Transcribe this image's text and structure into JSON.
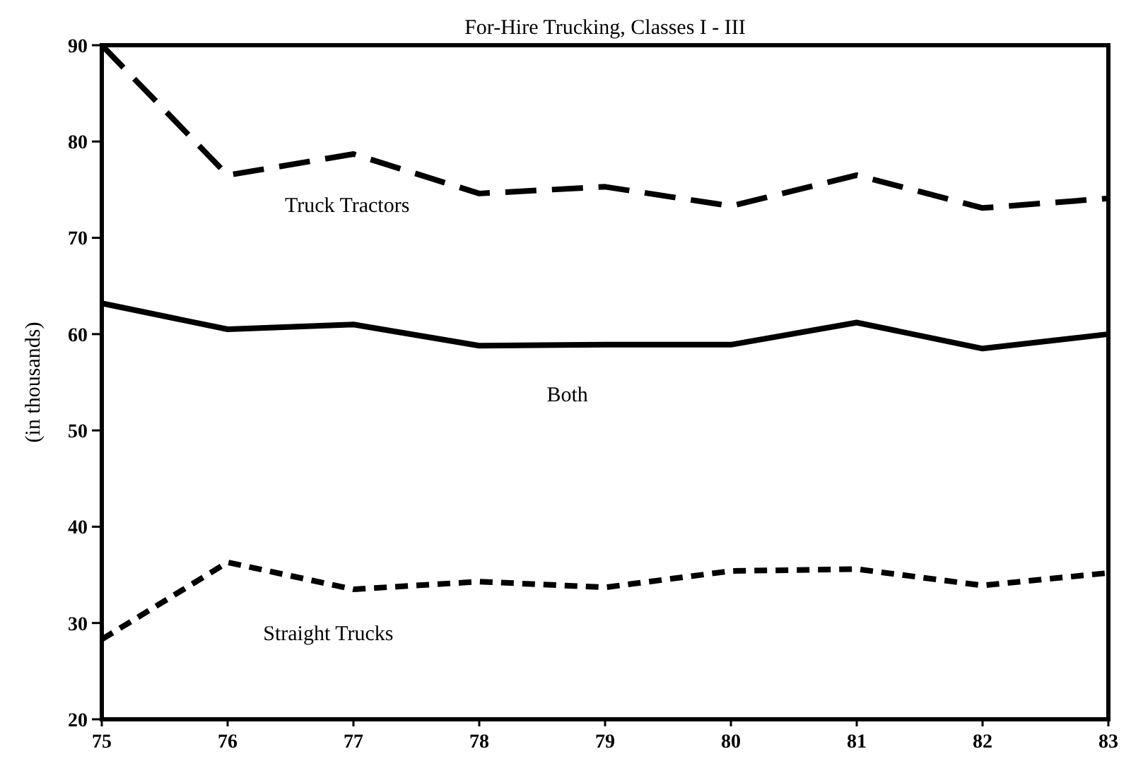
{
  "chart_data": {
    "type": "line",
    "title": "For-Hire Trucking, Classes I - III",
    "ylabel": "(in thousands)",
    "x": [
      75,
      76,
      77,
      78,
      79,
      80,
      81,
      82,
      83
    ],
    "xlim": [
      75,
      83
    ],
    "xticks": [
      75,
      76,
      77,
      78,
      79,
      80,
      81,
      82,
      83
    ],
    "ylim": [
      20,
      90
    ],
    "yticks": [
      20,
      30,
      40,
      50,
      60,
      70,
      80,
      90
    ],
    "grid": false,
    "series": [
      {
        "name": "Truck Tractors",
        "color": "#000000",
        "line_style": "dashed",
        "values": [
          90,
          76.5,
          78.7,
          74.6,
          75.3,
          73.3,
          76.5,
          73.1,
          74.1
        ]
      },
      {
        "name": "Both",
        "color": "#000000",
        "line_style": "solid",
        "values": [
          63.2,
          60.5,
          61.0,
          58.8,
          58.9,
          58.9,
          61.2,
          58.5,
          60.0
        ]
      },
      {
        "name": "Straight Trucks",
        "color": "#000000",
        "line_style": "dotted",
        "values": [
          28.3,
          36.3,
          33.5,
          34.3,
          33.7,
          35.4,
          35.6,
          33.9,
          35.2
        ]
      }
    ]
  }
}
